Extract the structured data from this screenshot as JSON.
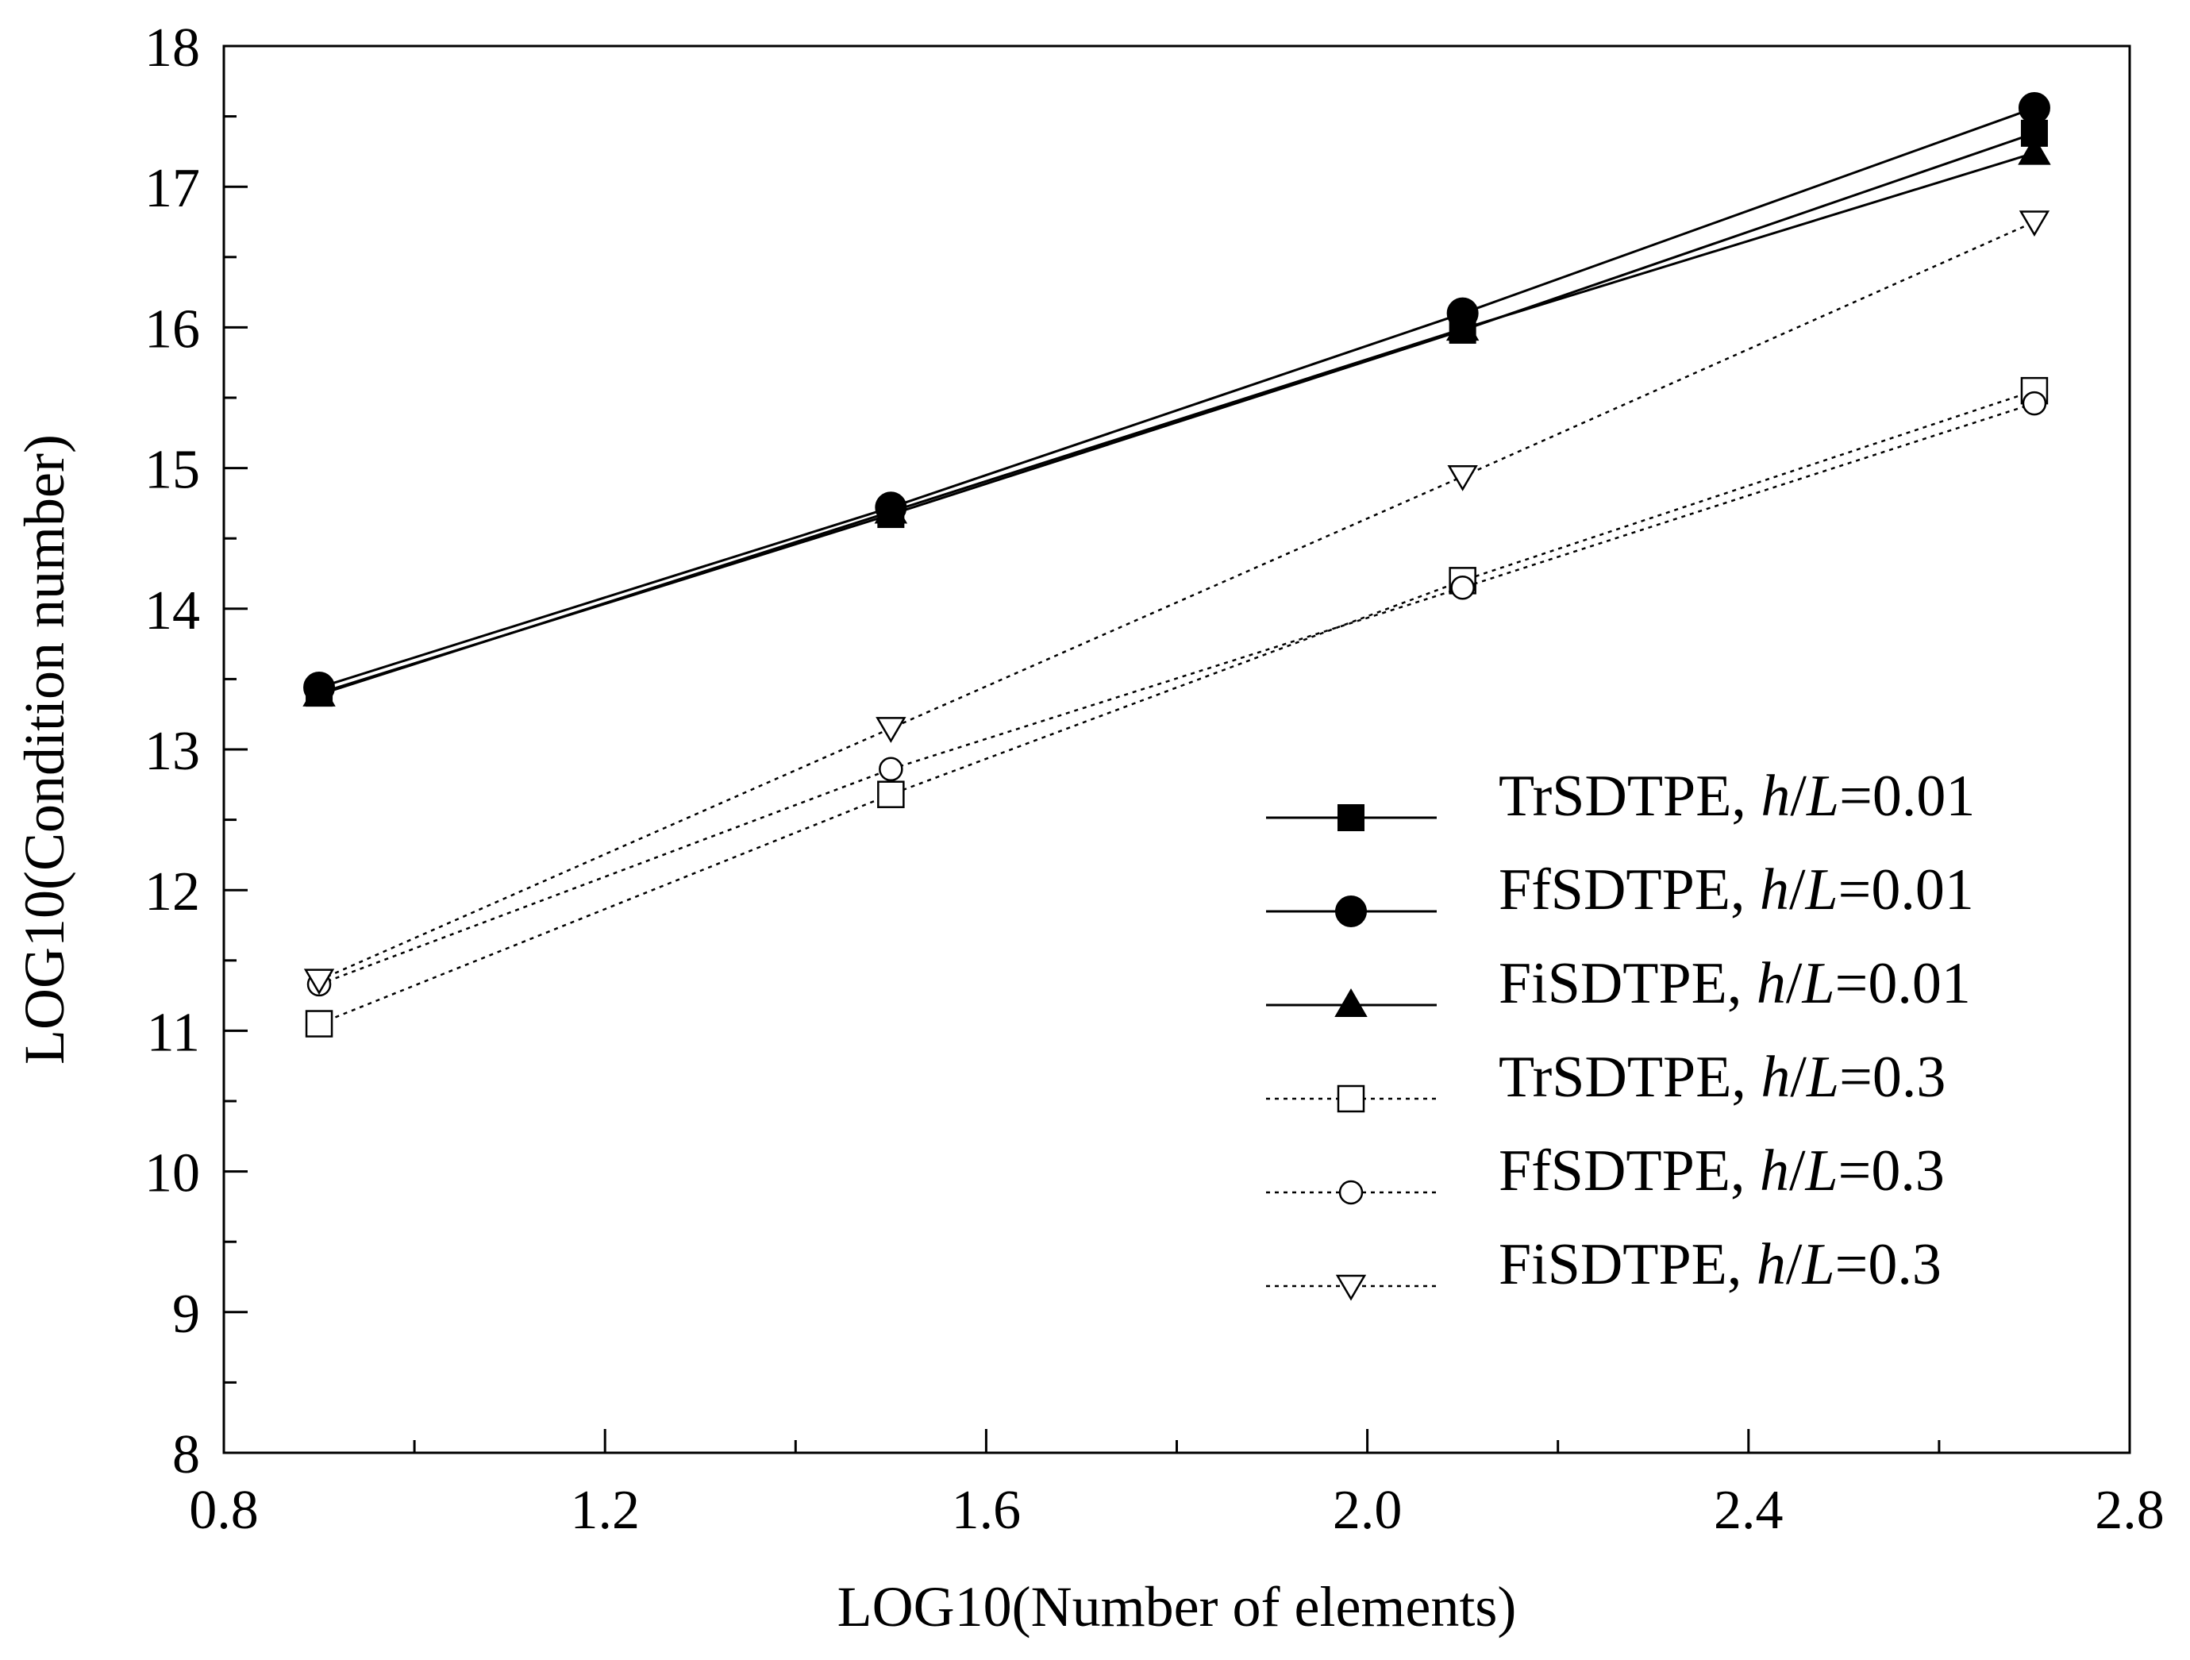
{
  "chart_data": {
    "type": "line",
    "xlabel": "LOG10(Number of elements)",
    "ylabel": "LOG10(Condition number)",
    "xlim": [
      0.8,
      2.8
    ],
    "ylim": [
      8,
      18
    ],
    "x_ticks": [
      "0.8",
      "1.2",
      "1.6",
      "2.0",
      "2.4",
      "2.8"
    ],
    "y_ticks": [
      "8",
      "9",
      "10",
      "11",
      "12",
      "13",
      "14",
      "15",
      "16",
      "17",
      "18"
    ],
    "x": [
      0.9,
      1.5,
      2.1,
      2.7
    ],
    "legend_position": "lower-right",
    "series": [
      {
        "name": "TrSDTPE",
        "h_over_L": "0.01",
        "marker": "square-filled",
        "line": "solid",
        "values": [
          13.4,
          14.67,
          15.98,
          17.38
        ]
      },
      {
        "name": "FfSDTPE",
        "h_over_L": "0.01",
        "marker": "circle-filled",
        "line": "solid",
        "values": [
          13.44,
          14.72,
          16.1,
          17.56
        ]
      },
      {
        "name": "FiSDTPE",
        "h_over_L": "0.01",
        "marker": "triangle-up-filled",
        "line": "solid",
        "values": [
          13.39,
          14.69,
          15.99,
          17.24
        ]
      },
      {
        "name": "TrSDTPE",
        "h_over_L": "0.3",
        "marker": "square-open",
        "line": "dotted",
        "values": [
          11.05,
          12.68,
          14.2,
          15.55
        ]
      },
      {
        "name": "FfSDTPE",
        "h_over_L": "0.3",
        "marker": "circle-open",
        "line": "dotted",
        "values": [
          11.33,
          12.86,
          14.15,
          15.46
        ]
      },
      {
        "name": "FiSDTPE",
        "h_over_L": "0.3",
        "marker": "triangle-down-open",
        "line": "dotted",
        "values": [
          11.36,
          13.15,
          14.94,
          16.75
        ]
      }
    ],
    "legend_h": "h",
    "legend_sep": "/",
    "legend_L": "L"
  }
}
